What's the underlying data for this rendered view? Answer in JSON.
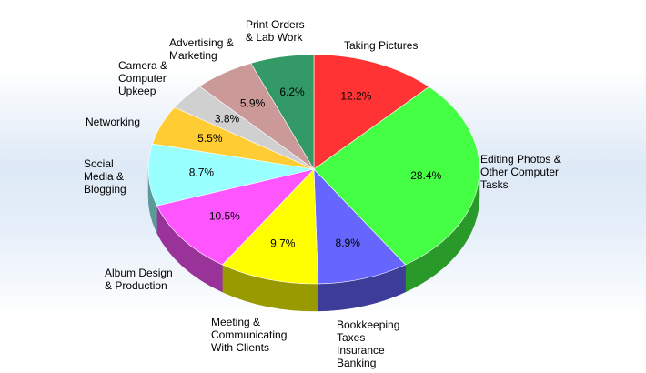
{
  "chart_data": {
    "type": "pie3d",
    "categories": [
      "Taking Pictures",
      "Editing Photos &\nOther Computer\nTasks",
      "Bookkeeping\nTaxes\nInsurance\nBanking",
      "Meeting &\nCommunicating\nWith Clients",
      "Album Design\n& Production",
      "Social\nMedia &\nBlogging",
      "Networking",
      "Camera &\nComputer\nUpkeep",
      "Advertising &\nMarketing",
      "Print Orders\n& Lab Work"
    ],
    "values": [
      12.2,
      28.4,
      8.9,
      9.7,
      10.5,
      8.7,
      5.5,
      3.8,
      5.9,
      6.2
    ],
    "value_labels": [
      "12.2%",
      "28.4%",
      "8.9%",
      "9.7%",
      "10.5%",
      "8.7%",
      "5.5%",
      "3.8%",
      "5.9%",
      "6.2%"
    ],
    "colors": [
      "#ff3333",
      "#44ff44",
      "#6666ff",
      "#ffff00",
      "#ff55ff",
      "#99ffff",
      "#ffcc33",
      "#d0d0d0",
      "#cc9999",
      "#339966"
    ]
  }
}
